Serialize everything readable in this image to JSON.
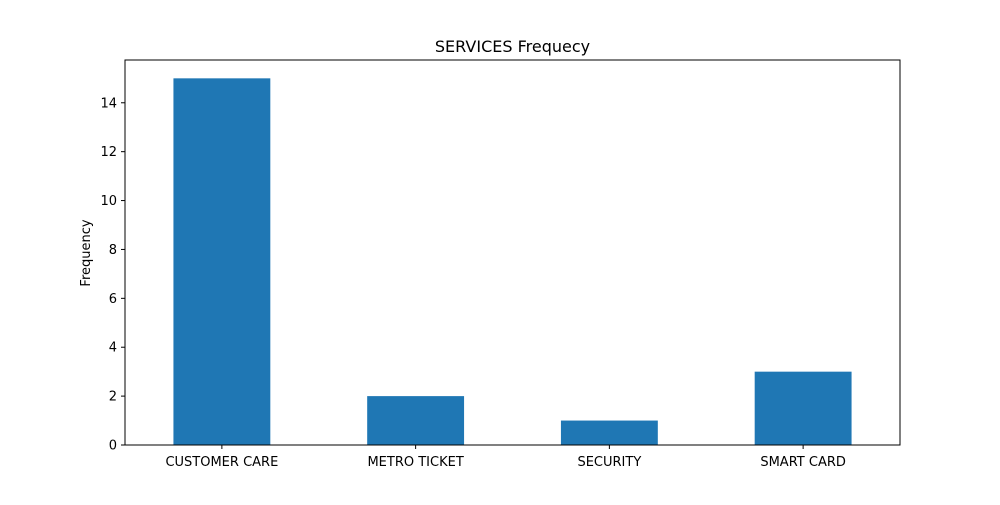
{
  "chart_data": {
    "type": "bar",
    "title": "SERVICES Frequecy",
    "xlabel": "",
    "ylabel": "Frequency",
    "categories": [
      "CUSTOMER CARE",
      "METRO TICKET",
      "SECURITY",
      "SMART CARD"
    ],
    "values": [
      15,
      2,
      1,
      3
    ],
    "ylim": [
      0,
      15.75
    ],
    "yticks": [
      0,
      2,
      4,
      6,
      8,
      10,
      12,
      14
    ],
    "bar_color": "#1f77b4",
    "grid": false,
    "legend": "none"
  }
}
